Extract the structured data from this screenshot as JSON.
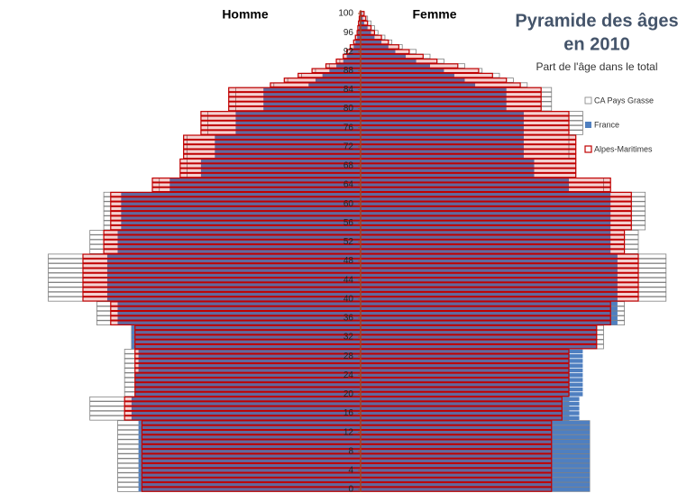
{
  "chart_data": {
    "type": "pyramid",
    "title": [
      "Pyramide des âges",
      "en 2010"
    ],
    "subtitle": "Part de l'âge dans le total",
    "left_label": "Homme",
    "right_label": "Femme",
    "xlim": [
      0,
      1
    ],
    "ylim": [
      0,
      100
    ],
    "yticks": [
      0,
      4,
      8,
      12,
      16,
      20,
      24,
      28,
      32,
      36,
      40,
      44,
      48,
      52,
      56,
      60,
      64,
      68,
      72,
      76,
      80,
      84,
      88,
      92,
      96,
      100
    ],
    "ages": [
      0,
      1,
      2,
      3,
      4,
      5,
      6,
      7,
      8,
      9,
      10,
      11,
      12,
      13,
      14,
      15,
      16,
      17,
      18,
      19,
      20,
      21,
      22,
      23,
      24,
      25,
      26,
      27,
      28,
      29,
      30,
      31,
      32,
      33,
      34,
      35,
      36,
      37,
      38,
      39,
      40,
      41,
      42,
      43,
      44,
      45,
      46,
      47,
      48,
      49,
      50,
      51,
      52,
      53,
      54,
      55,
      56,
      57,
      58,
      59,
      60,
      61,
      62,
      63,
      64,
      65,
      66,
      67,
      68,
      69,
      70,
      71,
      72,
      73,
      74,
      75,
      76,
      77,
      78,
      79,
      80,
      81,
      82,
      83,
      84,
      85,
      86,
      87,
      88,
      89,
      90,
      91,
      92,
      93,
      94,
      95,
      96,
      97,
      98,
      99,
      100
    ],
    "series": [
      {
        "name": "CA Pays Grasse",
        "color": "#808080",
        "style": "outline-white",
        "homme": [
          0.7,
          0.7,
          0.7,
          0.7,
          0.7,
          0.7,
          0.7,
          0.7,
          0.7,
          0.7,
          0.7,
          0.7,
          0.7,
          0.7,
          0.7,
          0.78,
          0.78,
          0.78,
          0.78,
          0.78,
          0.68,
          0.68,
          0.68,
          0.68,
          0.68,
          0.68,
          0.68,
          0.68,
          0.68,
          0.68,
          0.66,
          0.66,
          0.66,
          0.66,
          0.66,
          0.76,
          0.76,
          0.76,
          0.76,
          0.76,
          0.9,
          0.9,
          0.9,
          0.9,
          0.9,
          0.9,
          0.9,
          0.9,
          0.9,
          0.9,
          0.78,
          0.78,
          0.78,
          0.78,
          0.78,
          0.74,
          0.74,
          0.74,
          0.74,
          0.74,
          0.74,
          0.74,
          0.74,
          0.58,
          0.58,
          0.58,
          0.5,
          0.5,
          0.5,
          0.5,
          0.5,
          0.5,
          0.5,
          0.5,
          0.5,
          0.44,
          0.44,
          0.44,
          0.44,
          0.44,
          0.36,
          0.36,
          0.36,
          0.36,
          0.36,
          0.25,
          0.21,
          0.17,
          0.13,
          0.09,
          0.06,
          0.05,
          0.04,
          0.03,
          0.02,
          0.015,
          0.01,
          0.008,
          0.006,
          0.004,
          0.002
        ],
        "femme": [
          0.66,
          0.66,
          0.66,
          0.66,
          0.66,
          0.66,
          0.66,
          0.66,
          0.66,
          0.66,
          0.66,
          0.66,
          0.66,
          0.66,
          0.66,
          0.6,
          0.6,
          0.6,
          0.6,
          0.6,
          0.55,
          0.55,
          0.55,
          0.55,
          0.55,
          0.55,
          0.55,
          0.55,
          0.55,
          0.55,
          0.7,
          0.7,
          0.7,
          0.7,
          0.7,
          0.76,
          0.76,
          0.76,
          0.76,
          0.76,
          0.88,
          0.88,
          0.88,
          0.88,
          0.88,
          0.88,
          0.88,
          0.88,
          0.88,
          0.88,
          0.8,
          0.8,
          0.8,
          0.8,
          0.8,
          0.82,
          0.82,
          0.82,
          0.82,
          0.82,
          0.82,
          0.82,
          0.82,
          0.7,
          0.7,
          0.7,
          0.62,
          0.62,
          0.62,
          0.62,
          0.6,
          0.6,
          0.6,
          0.6,
          0.6,
          0.64,
          0.64,
          0.64,
          0.64,
          0.64,
          0.55,
          0.55,
          0.55,
          0.55,
          0.55,
          0.48,
          0.44,
          0.4,
          0.35,
          0.3,
          0.24,
          0.2,
          0.16,
          0.12,
          0.09,
          0.07,
          0.05,
          0.04,
          0.03,
          0.02,
          0.01
        ]
      },
      {
        "name": "France",
        "color": "#4f7fc0",
        "style": "filled",
        "homme": [
          0.64,
          0.64,
          0.64,
          0.64,
          0.64,
          0.64,
          0.64,
          0.64,
          0.64,
          0.64,
          0.64,
          0.64,
          0.64,
          0.64,
          0.64,
          0.66,
          0.66,
          0.66,
          0.66,
          0.66,
          0.65,
          0.65,
          0.65,
          0.65,
          0.65,
          0.64,
          0.64,
          0.64,
          0.64,
          0.64,
          0.66,
          0.66,
          0.66,
          0.66,
          0.66,
          0.7,
          0.7,
          0.7,
          0.7,
          0.7,
          0.73,
          0.73,
          0.73,
          0.73,
          0.73,
          0.73,
          0.73,
          0.73,
          0.73,
          0.73,
          0.7,
          0.7,
          0.7,
          0.7,
          0.7,
          0.69,
          0.69,
          0.69,
          0.69,
          0.69,
          0.69,
          0.69,
          0.69,
          0.55,
          0.55,
          0.55,
          0.46,
          0.46,
          0.46,
          0.46,
          0.42,
          0.42,
          0.42,
          0.42,
          0.42,
          0.36,
          0.36,
          0.36,
          0.36,
          0.36,
          0.28,
          0.28,
          0.28,
          0.28,
          0.28,
          0.15,
          0.13,
          0.11,
          0.09,
          0.07,
          0.05,
          0.04,
          0.03,
          0.02,
          0.015,
          0.01,
          0.008,
          0.005,
          0.003,
          0.002,
          0.001
        ],
        "femme": [
          0.66,
          0.66,
          0.66,
          0.66,
          0.66,
          0.66,
          0.66,
          0.66,
          0.66,
          0.66,
          0.66,
          0.66,
          0.66,
          0.66,
          0.66,
          0.63,
          0.63,
          0.63,
          0.63,
          0.63,
          0.64,
          0.64,
          0.64,
          0.64,
          0.64,
          0.64,
          0.64,
          0.64,
          0.64,
          0.64,
          0.68,
          0.68,
          0.68,
          0.68,
          0.68,
          0.74,
          0.74,
          0.74,
          0.74,
          0.74,
          0.74,
          0.74,
          0.74,
          0.74,
          0.74,
          0.74,
          0.74,
          0.74,
          0.74,
          0.74,
          0.72,
          0.72,
          0.72,
          0.72,
          0.72,
          0.72,
          0.72,
          0.72,
          0.72,
          0.72,
          0.72,
          0.72,
          0.72,
          0.6,
          0.6,
          0.6,
          0.5,
          0.5,
          0.5,
          0.5,
          0.47,
          0.47,
          0.47,
          0.47,
          0.47,
          0.47,
          0.47,
          0.47,
          0.47,
          0.47,
          0.42,
          0.42,
          0.42,
          0.42,
          0.42,
          0.33,
          0.3,
          0.27,
          0.24,
          0.2,
          0.16,
          0.13,
          0.1,
          0.08,
          0.06,
          0.04,
          0.03,
          0.02,
          0.01,
          0.006,
          0.004
        ]
      },
      {
        "name": "Alpes-Maritimes",
        "color": "#c00000",
        "style": "outline",
        "homme": [
          0.63,
          0.63,
          0.63,
          0.63,
          0.63,
          0.63,
          0.63,
          0.63,
          0.63,
          0.63,
          0.63,
          0.63,
          0.63,
          0.63,
          0.63,
          0.68,
          0.68,
          0.68,
          0.68,
          0.68,
          0.65,
          0.65,
          0.65,
          0.65,
          0.65,
          0.65,
          0.65,
          0.65,
          0.65,
          0.65,
          0.65,
          0.65,
          0.65,
          0.65,
          0.65,
          0.72,
          0.72,
          0.72,
          0.72,
          0.72,
          0.8,
          0.8,
          0.8,
          0.8,
          0.8,
          0.8,
          0.8,
          0.8,
          0.8,
          0.8,
          0.74,
          0.74,
          0.74,
          0.74,
          0.74,
          0.72,
          0.72,
          0.72,
          0.72,
          0.72,
          0.72,
          0.72,
          0.72,
          0.6,
          0.6,
          0.6,
          0.52,
          0.52,
          0.52,
          0.52,
          0.51,
          0.51,
          0.51,
          0.51,
          0.51,
          0.46,
          0.46,
          0.46,
          0.46,
          0.46,
          0.38,
          0.38,
          0.38,
          0.38,
          0.38,
          0.26,
          0.22,
          0.18,
          0.14,
          0.1,
          0.07,
          0.05,
          0.04,
          0.03,
          0.02,
          0.015,
          0.01,
          0.008,
          0.006,
          0.004,
          0.002
        ],
        "femme": [
          0.55,
          0.55,
          0.55,
          0.55,
          0.55,
          0.55,
          0.55,
          0.55,
          0.55,
          0.55,
          0.55,
          0.55,
          0.55,
          0.55,
          0.55,
          0.58,
          0.58,
          0.58,
          0.58,
          0.58,
          0.6,
          0.6,
          0.6,
          0.6,
          0.6,
          0.6,
          0.6,
          0.6,
          0.6,
          0.6,
          0.68,
          0.68,
          0.68,
          0.68,
          0.68,
          0.72,
          0.72,
          0.72,
          0.72,
          0.72,
          0.8,
          0.8,
          0.8,
          0.8,
          0.8,
          0.8,
          0.8,
          0.8,
          0.8,
          0.8,
          0.76,
          0.76,
          0.76,
          0.76,
          0.76,
          0.78,
          0.78,
          0.78,
          0.78,
          0.78,
          0.78,
          0.78,
          0.78,
          0.72,
          0.72,
          0.72,
          0.62,
          0.62,
          0.62,
          0.62,
          0.62,
          0.62,
          0.62,
          0.62,
          0.62,
          0.6,
          0.6,
          0.6,
          0.6,
          0.6,
          0.52,
          0.52,
          0.52,
          0.52,
          0.52,
          0.46,
          0.42,
          0.38,
          0.34,
          0.28,
          0.22,
          0.18,
          0.14,
          0.11,
          0.08,
          0.06,
          0.04,
          0.03,
          0.02,
          0.015,
          0.01
        ]
      }
    ]
  }
}
